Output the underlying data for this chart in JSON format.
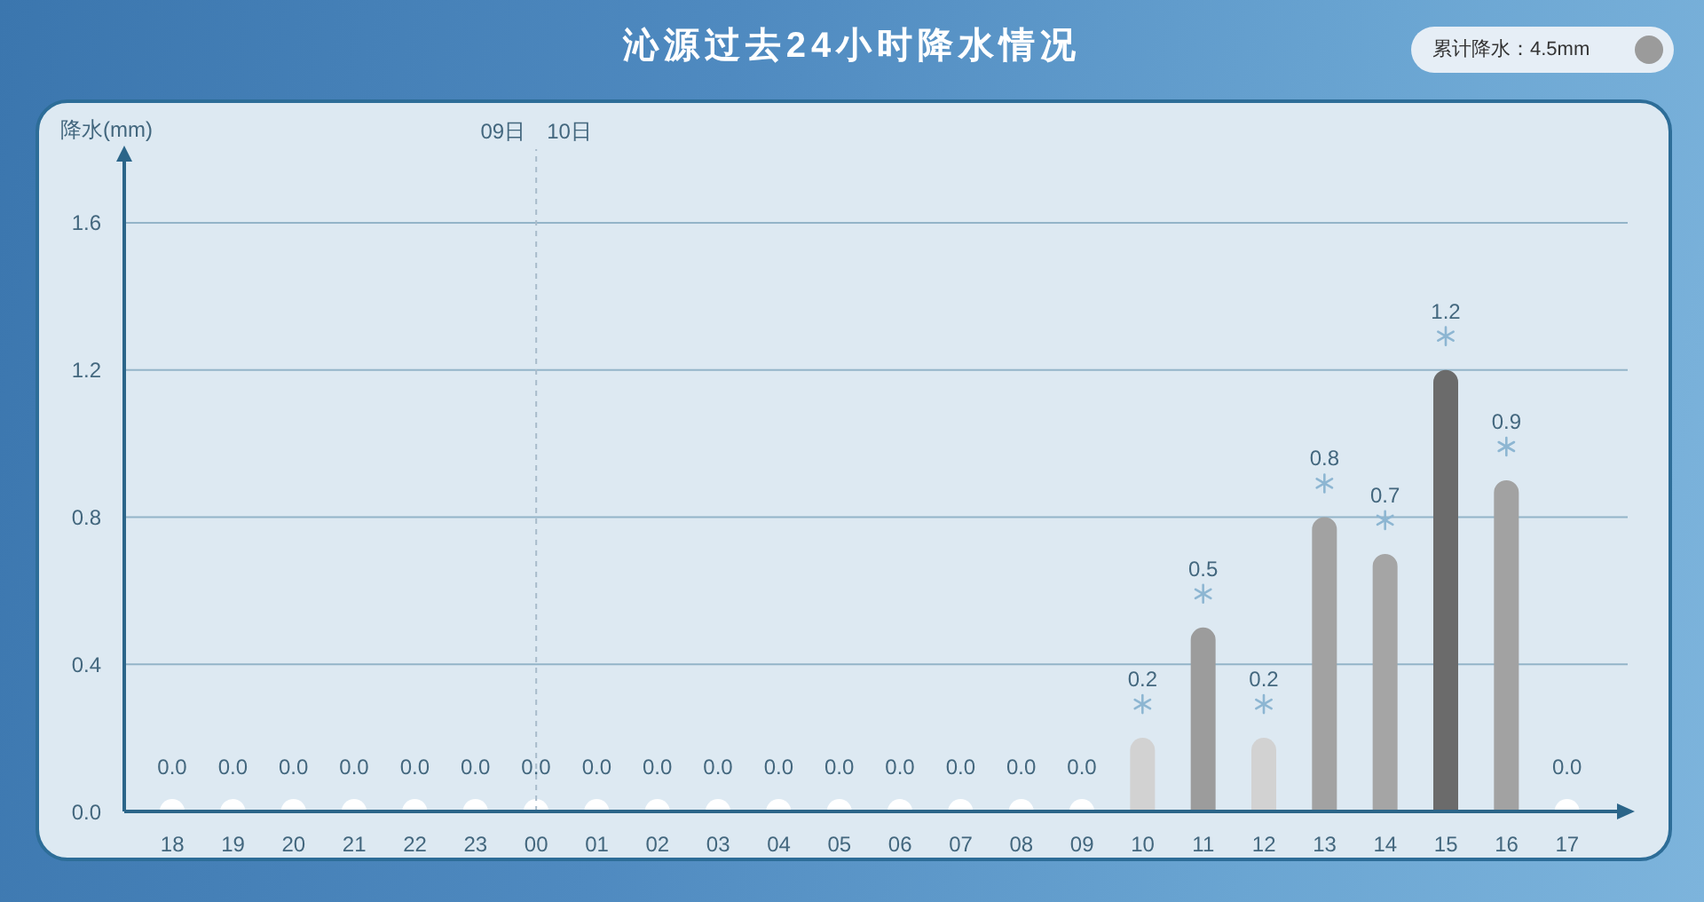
{
  "chart_data": {
    "type": "bar",
    "title": "沁源过去24小时降水情况",
    "ylabel": "降水(mm)",
    "categories": [
      "18",
      "19",
      "20",
      "21",
      "22",
      "23",
      "00",
      "01",
      "02",
      "03",
      "04",
      "05",
      "06",
      "07",
      "08",
      "09",
      "10",
      "11",
      "12",
      "13",
      "14",
      "15",
      "16",
      "17"
    ],
    "values": [
      0,
      0,
      0,
      0,
      0,
      0,
      0,
      0,
      0,
      0,
      0,
      0,
      0,
      0,
      0,
      0,
      0.2,
      0.5,
      0.2,
      0.8,
      0.7,
      1.2,
      0.9,
      0
    ],
    "colors": [
      "#ffffff",
      "#ffffff",
      "#ffffff",
      "#ffffff",
      "#ffffff",
      "#ffffff",
      "#ffffff",
      "#ffffff",
      "#ffffff",
      "#ffffff",
      "#ffffff",
      "#ffffff",
      "#ffffff",
      "#ffffff",
      "#ffffff",
      "#ffffff",
      "#d2d2d2",
      "#9c9c9c",
      "#d2d2d2",
      "#a2a2a2",
      "#a5a5a5",
      "#6b6b6b",
      "#a2a2a2",
      "#ffffff"
    ],
    "value_labels": [
      "0.0",
      "0.0",
      "0.0",
      "0.0",
      "0.0",
      "0.0",
      "0.0",
      "0.0",
      "0.0",
      "0.0",
      "0.0",
      "0.0",
      "0.0",
      "0.0",
      "0.0",
      "0.0",
      "0.2",
      "0.5",
      "0.2",
      "0.8",
      "0.7",
      "1.2",
      "0.9",
      "0.0"
    ],
    "ylim": [
      0,
      1.8
    ],
    "yticks": [
      {
        "value": 0,
        "label": "0.0"
      },
      0.4,
      0.8,
      1.2,
      1.6
    ],
    "grid": "y",
    "ref_lines": [
      {
        "axis": "x",
        "value": "00",
        "label": "10日",
        "line_style": "dashed",
        "color": "#a9bccb"
      }
    ],
    "annotations": [
      "累计降水：4.5mm",
      "09日"
    ]
  }
}
